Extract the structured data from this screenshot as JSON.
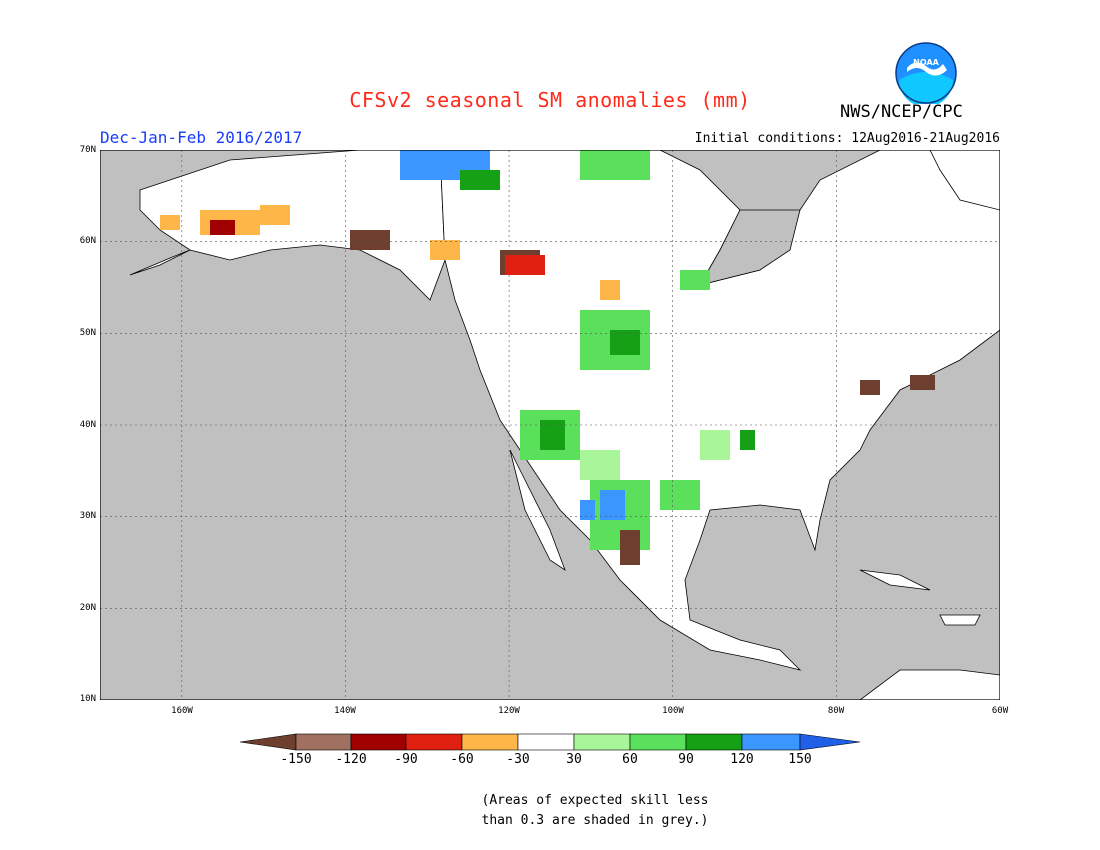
{
  "header": {
    "title": "CFSv2 seasonal SM anomalies (mm)",
    "agency": "NWS/NCEP/CPC",
    "logo_text": "NOAA",
    "season": "Dec-Jan-Feb 2016/2017",
    "initial_conditions": "Initial conditions: 12Aug2016-21Aug2016"
  },
  "map": {
    "lon_range": [
      -170,
      -60
    ],
    "lat_range": [
      10,
      70
    ],
    "lat_labels": [
      "70N",
      "60N",
      "50N",
      "40N",
      "30N",
      "20N",
      "10N"
    ],
    "lon_labels": [
      "160W",
      "140W",
      "120W",
      "100W",
      "80W",
      "60W"
    ],
    "mask_color": "#c0c0c0"
  },
  "colorbar": {
    "labels": [
      "-150",
      "-120",
      "-90",
      "-60",
      "-30",
      "30",
      "60",
      "90",
      "120",
      "150"
    ],
    "colors": [
      "#6e3f2e",
      "#a07060",
      "#a00000",
      "#e02010",
      "#ff4a00",
      "#ffb648",
      "#ffffff",
      "#a8f59a",
      "#5ae05a",
      "#16a016",
      "#3c96ff",
      "#2060e8"
    ]
  },
  "footnote": {
    "line1": "(Areas of expected skill less",
    "line2": "than 0.3 are shaded in grey.)"
  }
}
